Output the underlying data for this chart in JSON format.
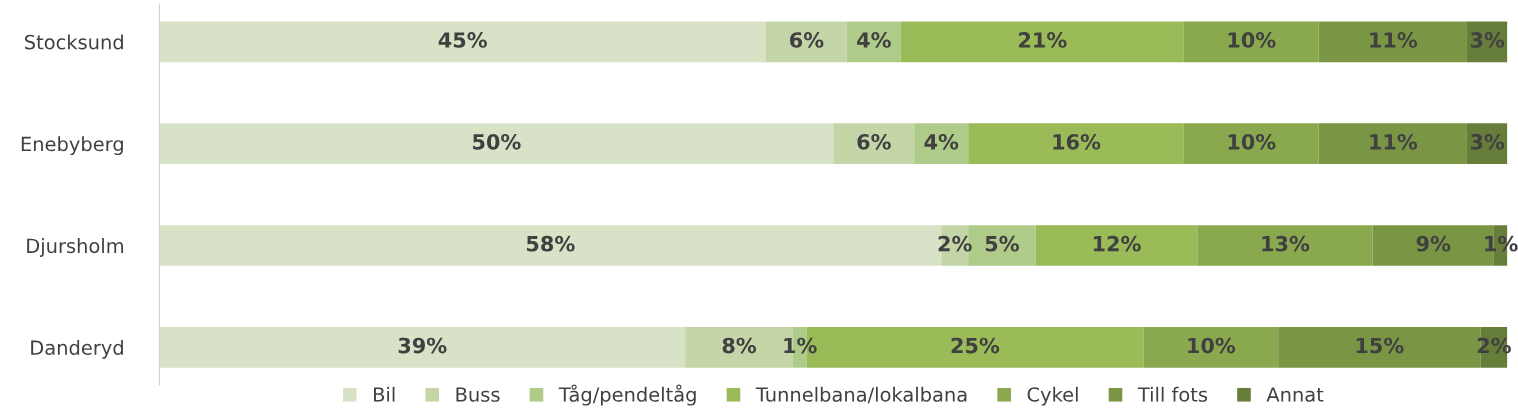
{
  "chart_data": {
    "type": "bar",
    "orientation": "horizontal",
    "stacked": true,
    "legend": "bottom",
    "grid": false,
    "categories": [
      "Stocksund",
      "Enebyberg",
      "Djursholm",
      "Danderyd"
    ],
    "series": [
      {
        "name": "Bil",
        "color": "#d8e2c6",
        "values": [
          45,
          50,
          58,
          39
        ],
        "value_labels": [
          "45%",
          "50%",
          "58%",
          "39%"
        ]
      },
      {
        "name": "Buss",
        "color": "#c4d6a8",
        "values": [
          6,
          6,
          2,
          8
        ],
        "value_labels": [
          "6%",
          "6%",
          "2%",
          "8%"
        ]
      },
      {
        "name": "Tåg/pendeltåg",
        "color": "#afcb8a",
        "values": [
          4,
          4,
          5,
          1
        ],
        "value_labels": [
          "4%",
          "4%",
          "5%",
          "1%"
        ]
      },
      {
        "name": "Tunnelbana/lokalbana",
        "color": "#9bbb59",
        "values": [
          21,
          16,
          12,
          25
        ],
        "value_labels": [
          "21%",
          "16%",
          "12%",
          "25%"
        ]
      },
      {
        "name": "Cykel",
        "color": "#8aa94f",
        "values": [
          10,
          10,
          13,
          10
        ],
        "value_labels": [
          "10%",
          "10%",
          "13%",
          "10%"
        ]
      },
      {
        "name": "Till fots",
        "color": "#7a9645",
        "values": [
          11,
          11,
          9,
          15
        ],
        "value_labels": [
          "11%",
          "11%",
          "9%",
          "15%"
        ]
      },
      {
        "name": "Annat",
        "color": "#677e3b",
        "values": [
          3,
          3,
          1,
          2
        ],
        "value_labels": [
          "3%",
          "3%",
          "1%",
          "2%"
        ]
      }
    ]
  }
}
